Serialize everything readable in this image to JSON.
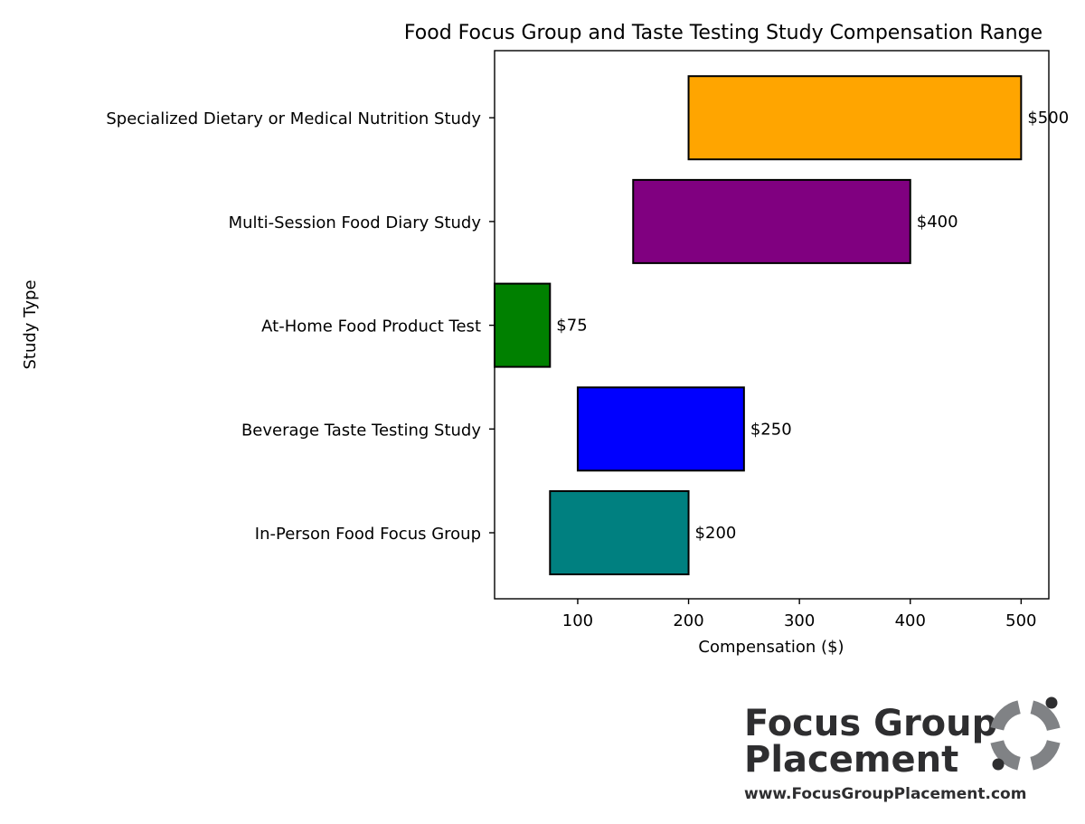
{
  "chart_data": {
    "type": "bar",
    "orientation": "horizontal-range",
    "title": "Food Focus Group and Taste Testing Study Compensation Range",
    "xlabel": "Compensation ($)",
    "ylabel": "Study Type",
    "categories": [
      "In-Person Food Focus Group",
      "Beverage Taste Testing Study",
      "At-Home Food Product Test",
      "Multi-Session Food Diary Study",
      "Specialized Dietary or Medical Nutrition Study"
    ],
    "ranges": [
      {
        "min": 75,
        "max": 200,
        "label": "$200",
        "color": "#008080"
      },
      {
        "min": 100,
        "max": 250,
        "label": "$250",
        "color": "#0000ff"
      },
      {
        "min": 25,
        "max": 75,
        "label": "$75",
        "color": "#008000"
      },
      {
        "min": 150,
        "max": 400,
        "label": "$400",
        "color": "#800080"
      },
      {
        "min": 200,
        "max": 500,
        "label": "$500",
        "color": "#ffa500"
      }
    ],
    "xlim": [
      25,
      525
    ],
    "xticks": [
      100,
      200,
      300,
      400,
      500
    ],
    "xtick_labels": [
      "100",
      "200",
      "300",
      "400",
      "500"
    ],
    "grid": false,
    "legend": "none"
  },
  "logo": {
    "line1": "Focus Group",
    "line2": "Placement",
    "url": "www.FocusGroupPlacement.com",
    "text_color": "#2e2e30",
    "mark_color": "#808285"
  }
}
